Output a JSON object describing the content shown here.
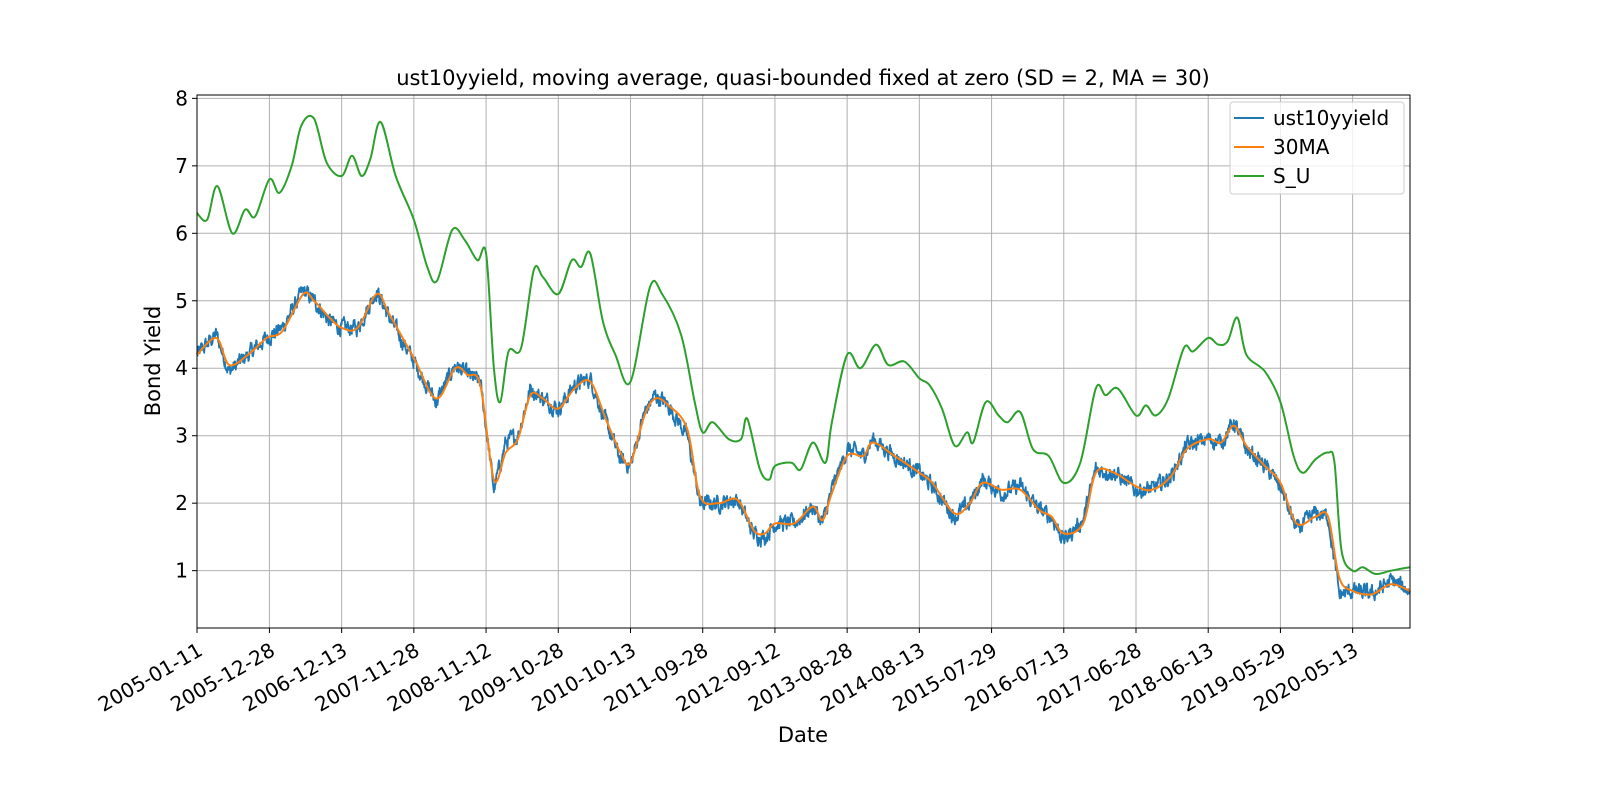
{
  "chart_data": {
    "type": "line",
    "title": "ust10yyield, moving average, quasi-bounded fixed at zero (SD = 2, MA = 30)",
    "xlabel": "Date",
    "ylabel": "Bond Yield",
    "x_range": [
      "2005-01-11",
      "2021-02-15"
    ],
    "ylim": [
      0.15,
      8.05
    ],
    "y_ticks": [
      1,
      2,
      3,
      4,
      5,
      6,
      7,
      8
    ],
    "x_ticks": [
      "2005-01-11",
      "2005-12-28",
      "2006-12-13",
      "2007-11-28",
      "2008-11-12",
      "2009-10-28",
      "2010-10-13",
      "2011-09-28",
      "2012-09-12",
      "2013-08-28",
      "2014-08-13",
      "2015-07-29",
      "2016-07-13",
      "2017-06-28",
      "2018-06-13",
      "2019-05-29",
      "2020-05-13"
    ],
    "grid": true,
    "legend_position": "top-right",
    "series": [
      {
        "name": "ust10yyield",
        "color": "#1f77b4",
        "noise": 0.12,
        "points": [
          [
            "2005-01-11",
            4.2
          ],
          [
            "2005-04-15",
            4.5
          ],
          [
            "2005-06-15",
            3.95
          ],
          [
            "2005-09-15",
            4.2
          ],
          [
            "2005-12-15",
            4.45
          ],
          [
            "2006-03-01",
            4.6
          ],
          [
            "2006-06-10",
            5.15
          ],
          [
            "2006-08-01",
            5.0
          ],
          [
            "2006-10-15",
            4.7
          ],
          [
            "2006-12-13",
            4.6
          ],
          [
            "2007-03-01",
            4.6
          ],
          [
            "2007-06-01",
            5.15
          ],
          [
            "2007-08-01",
            4.75
          ],
          [
            "2007-11-28",
            4.1
          ],
          [
            "2008-03-15",
            3.5
          ],
          [
            "2008-06-15",
            4.05
          ],
          [
            "2008-08-15",
            3.9
          ],
          [
            "2008-10-15",
            3.8
          ],
          [
            "2008-12-20",
            2.2
          ],
          [
            "2009-02-15",
            2.9
          ],
          [
            "2009-04-15",
            3.0
          ],
          [
            "2009-06-15",
            3.7
          ],
          [
            "2009-08-15",
            3.55
          ],
          [
            "2009-10-28",
            3.4
          ],
          [
            "2010-01-15",
            3.75
          ],
          [
            "2010-04-01",
            3.85
          ],
          [
            "2010-06-15",
            3.2
          ],
          [
            "2010-08-25",
            2.65
          ],
          [
            "2010-10-13",
            2.55
          ],
          [
            "2010-12-20",
            3.35
          ],
          [
            "2011-02-10",
            3.6
          ],
          [
            "2011-04-15",
            3.45
          ],
          [
            "2011-07-15",
            3.0
          ],
          [
            "2011-09-15",
            2.0
          ],
          [
            "2011-12-15",
            2.0
          ],
          [
            "2012-03-15",
            2.05
          ],
          [
            "2012-06-01",
            1.55
          ],
          [
            "2012-07-25",
            1.5
          ],
          [
            "2012-09-12",
            1.7
          ],
          [
            "2012-12-15",
            1.7
          ],
          [
            "2013-03-15",
            1.95
          ],
          [
            "2013-05-01",
            1.7
          ],
          [
            "2013-06-15",
            2.2
          ],
          [
            "2013-08-28",
            2.8
          ],
          [
            "2013-11-15",
            2.7
          ],
          [
            "2013-12-31",
            2.95
          ],
          [
            "2014-04-15",
            2.7
          ],
          [
            "2014-08-13",
            2.45
          ],
          [
            "2014-10-15",
            2.25
          ],
          [
            "2015-01-30",
            1.8
          ],
          [
            "2015-04-15",
            2.0
          ],
          [
            "2015-06-15",
            2.35
          ],
          [
            "2015-09-15",
            2.15
          ],
          [
            "2015-12-15",
            2.25
          ],
          [
            "2016-03-15",
            1.9
          ],
          [
            "2016-05-15",
            1.8
          ],
          [
            "2016-07-13",
            1.45
          ],
          [
            "2016-10-15",
            1.75
          ],
          [
            "2016-12-15",
            2.5
          ],
          [
            "2017-03-15",
            2.45
          ],
          [
            "2017-06-28",
            2.2
          ],
          [
            "2017-09-15",
            2.2
          ],
          [
            "2017-12-15",
            2.4
          ],
          [
            "2018-03-01",
            2.85
          ],
          [
            "2018-06-13",
            2.95
          ],
          [
            "2018-08-15",
            2.9
          ],
          [
            "2018-10-15",
            3.2
          ],
          [
            "2018-12-15",
            2.8
          ],
          [
            "2019-03-15",
            2.55
          ],
          [
            "2019-05-29",
            2.25
          ],
          [
            "2019-08-15",
            1.6
          ],
          [
            "2019-11-15",
            1.85
          ],
          [
            "2020-01-15",
            1.8
          ],
          [
            "2020-03-09",
            0.65
          ],
          [
            "2020-05-13",
            0.7
          ],
          [
            "2020-08-15",
            0.65
          ],
          [
            "2020-11-15",
            0.85
          ],
          [
            "2021-02-15",
            0.7
          ]
        ]
      },
      {
        "name": "30MA",
        "color": "#ff7f0e",
        "noise": 0,
        "points": [
          [
            "2005-01-11",
            4.2
          ],
          [
            "2005-04-15",
            4.45
          ],
          [
            "2005-06-15",
            4.05
          ],
          [
            "2005-09-15",
            4.2
          ],
          [
            "2005-12-15",
            4.45
          ],
          [
            "2006-03-01",
            4.55
          ],
          [
            "2006-06-10",
            5.1
          ],
          [
            "2006-08-01",
            5.0
          ],
          [
            "2006-10-15",
            4.75
          ],
          [
            "2006-12-13",
            4.6
          ],
          [
            "2007-03-01",
            4.6
          ],
          [
            "2007-06-01",
            5.1
          ],
          [
            "2007-08-01",
            4.8
          ],
          [
            "2007-11-28",
            4.15
          ],
          [
            "2008-03-15",
            3.55
          ],
          [
            "2008-06-15",
            4.0
          ],
          [
            "2008-08-15",
            3.9
          ],
          [
            "2008-10-15",
            3.75
          ],
          [
            "2008-12-20",
            2.35
          ],
          [
            "2009-02-15",
            2.75
          ],
          [
            "2009-04-15",
            2.95
          ],
          [
            "2009-06-15",
            3.6
          ],
          [
            "2009-08-15",
            3.55
          ],
          [
            "2009-10-28",
            3.4
          ],
          [
            "2010-01-15",
            3.7
          ],
          [
            "2010-04-01",
            3.8
          ],
          [
            "2010-06-15",
            3.25
          ],
          [
            "2010-08-25",
            2.75
          ],
          [
            "2010-10-13",
            2.6
          ],
          [
            "2010-12-20",
            3.3
          ],
          [
            "2011-02-10",
            3.55
          ],
          [
            "2011-04-15",
            3.45
          ],
          [
            "2011-07-15",
            3.1
          ],
          [
            "2011-09-15",
            2.1
          ],
          [
            "2011-12-15",
            2.0
          ],
          [
            "2012-03-15",
            2.05
          ],
          [
            "2012-06-01",
            1.6
          ],
          [
            "2012-07-25",
            1.55
          ],
          [
            "2012-09-12",
            1.7
          ],
          [
            "2012-12-15",
            1.7
          ],
          [
            "2013-03-15",
            1.95
          ],
          [
            "2013-05-01",
            1.75
          ],
          [
            "2013-06-15",
            2.15
          ],
          [
            "2013-08-28",
            2.7
          ],
          [
            "2013-11-15",
            2.7
          ],
          [
            "2013-12-31",
            2.9
          ],
          [
            "2014-04-15",
            2.7
          ],
          [
            "2014-08-13",
            2.45
          ],
          [
            "2014-10-15",
            2.3
          ],
          [
            "2015-01-30",
            1.85
          ],
          [
            "2015-04-15",
            2.0
          ],
          [
            "2015-06-15",
            2.3
          ],
          [
            "2015-09-15",
            2.2
          ],
          [
            "2015-12-15",
            2.2
          ],
          [
            "2016-03-15",
            1.9
          ],
          [
            "2016-05-15",
            1.8
          ],
          [
            "2016-07-13",
            1.55
          ],
          [
            "2016-10-15",
            1.7
          ],
          [
            "2016-12-15",
            2.45
          ],
          [
            "2017-03-15",
            2.45
          ],
          [
            "2017-06-28",
            2.25
          ],
          [
            "2017-09-15",
            2.2
          ],
          [
            "2017-12-15",
            2.4
          ],
          [
            "2018-03-01",
            2.8
          ],
          [
            "2018-06-13",
            2.95
          ],
          [
            "2018-08-15",
            2.9
          ],
          [
            "2018-10-15",
            3.15
          ],
          [
            "2018-12-15",
            2.85
          ],
          [
            "2019-03-15",
            2.55
          ],
          [
            "2019-05-29",
            2.3
          ],
          [
            "2019-08-15",
            1.7
          ],
          [
            "2019-11-15",
            1.8
          ],
          [
            "2020-01-15",
            1.8
          ],
          [
            "2020-03-09",
            0.9
          ],
          [
            "2020-05-13",
            0.7
          ],
          [
            "2020-08-15",
            0.65
          ],
          [
            "2020-11-15",
            0.8
          ],
          [
            "2021-02-15",
            0.7
          ]
        ]
      },
      {
        "name": "S_U",
        "color": "#2ca02c",
        "noise": 0,
        "points": [
          [
            "2005-01-11",
            6.3
          ],
          [
            "2005-03-01",
            6.2
          ],
          [
            "2005-04-20",
            6.7
          ],
          [
            "2005-07-01",
            6.0
          ],
          [
            "2005-09-01",
            6.35
          ],
          [
            "2005-10-20",
            6.25
          ],
          [
            "2005-12-28",
            6.8
          ],
          [
            "2006-02-15",
            6.6
          ],
          [
            "2006-04-15",
            7.0
          ],
          [
            "2006-06-01",
            7.6
          ],
          [
            "2006-08-01",
            7.7
          ],
          [
            "2006-10-01",
            7.05
          ],
          [
            "2006-12-13",
            6.85
          ],
          [
            "2007-02-01",
            7.15
          ],
          [
            "2007-03-20",
            6.85
          ],
          [
            "2007-05-01",
            7.1
          ],
          [
            "2007-06-20",
            7.65
          ],
          [
            "2007-09-01",
            6.85
          ],
          [
            "2007-11-28",
            6.2
          ],
          [
            "2008-02-01",
            5.5
          ],
          [
            "2008-03-20",
            5.3
          ],
          [
            "2008-06-01",
            6.05
          ],
          [
            "2008-08-01",
            5.9
          ],
          [
            "2008-10-01",
            5.6
          ],
          [
            "2008-11-12",
            5.7
          ],
          [
            "2008-12-20",
            4.0
          ],
          [
            "2009-01-20",
            3.5
          ],
          [
            "2009-03-01",
            4.25
          ],
          [
            "2009-05-01",
            4.3
          ],
          [
            "2009-07-01",
            5.45
          ],
          [
            "2009-08-15",
            5.35
          ],
          [
            "2009-10-28",
            5.1
          ],
          [
            "2010-01-01",
            5.6
          ],
          [
            "2010-02-15",
            5.5
          ],
          [
            "2010-04-01",
            5.7
          ],
          [
            "2010-06-01",
            4.7
          ],
          [
            "2010-08-01",
            4.2
          ],
          [
            "2010-10-13",
            3.8
          ],
          [
            "2011-01-15",
            5.2
          ],
          [
            "2011-03-15",
            5.1
          ],
          [
            "2011-06-15",
            4.5
          ],
          [
            "2011-08-20",
            3.5
          ],
          [
            "2011-09-28",
            3.05
          ],
          [
            "2011-11-15",
            3.2
          ],
          [
            "2012-02-01",
            2.95
          ],
          [
            "2012-04-01",
            2.95
          ],
          [
            "2012-05-01",
            3.25
          ],
          [
            "2012-07-01",
            2.5
          ],
          [
            "2012-08-15",
            2.35
          ],
          [
            "2012-09-12",
            2.55
          ],
          [
            "2012-12-01",
            2.6
          ],
          [
            "2013-01-15",
            2.5
          ],
          [
            "2013-03-15",
            2.9
          ],
          [
            "2013-05-15",
            2.6
          ],
          [
            "2013-06-15",
            3.2
          ],
          [
            "2013-08-28",
            4.2
          ],
          [
            "2013-11-01",
            4.0
          ],
          [
            "2014-01-15",
            4.35
          ],
          [
            "2014-03-15",
            4.05
          ],
          [
            "2014-06-01",
            4.1
          ],
          [
            "2014-08-13",
            3.85
          ],
          [
            "2014-10-01",
            3.75
          ],
          [
            "2014-12-01",
            3.4
          ],
          [
            "2015-02-01",
            2.85
          ],
          [
            "2015-04-01",
            3.05
          ],
          [
            "2015-05-01",
            2.9
          ],
          [
            "2015-07-01",
            3.5
          ],
          [
            "2015-09-01",
            3.3
          ],
          [
            "2015-10-15",
            3.2
          ],
          [
            "2015-12-15",
            3.35
          ],
          [
            "2016-02-15",
            2.8
          ],
          [
            "2016-05-01",
            2.7
          ],
          [
            "2016-07-13",
            2.3
          ],
          [
            "2016-10-01",
            2.6
          ],
          [
            "2016-12-15",
            3.7
          ],
          [
            "2017-02-01",
            3.6
          ],
          [
            "2017-04-01",
            3.7
          ],
          [
            "2017-06-28",
            3.3
          ],
          [
            "2017-08-15",
            3.45
          ],
          [
            "2017-10-01",
            3.3
          ],
          [
            "2017-12-01",
            3.55
          ],
          [
            "2018-02-15",
            4.3
          ],
          [
            "2018-04-01",
            4.25
          ],
          [
            "2018-06-13",
            4.45
          ],
          [
            "2018-08-01",
            4.35
          ],
          [
            "2018-09-15",
            4.4
          ],
          [
            "2018-11-01",
            4.75
          ],
          [
            "2018-12-15",
            4.2
          ],
          [
            "2019-03-15",
            3.95
          ],
          [
            "2019-05-29",
            3.5
          ],
          [
            "2019-08-01",
            2.7
          ],
          [
            "2019-09-15",
            2.45
          ],
          [
            "2019-11-15",
            2.65
          ],
          [
            "2020-01-15",
            2.75
          ],
          [
            "2020-02-15",
            2.6
          ],
          [
            "2020-03-20",
            1.3
          ],
          [
            "2020-05-13",
            1.0
          ],
          [
            "2020-07-01",
            1.05
          ],
          [
            "2020-09-01",
            0.95
          ],
          [
            "2020-11-15",
            1.0
          ],
          [
            "2021-02-15",
            1.05
          ]
        ]
      }
    ]
  }
}
